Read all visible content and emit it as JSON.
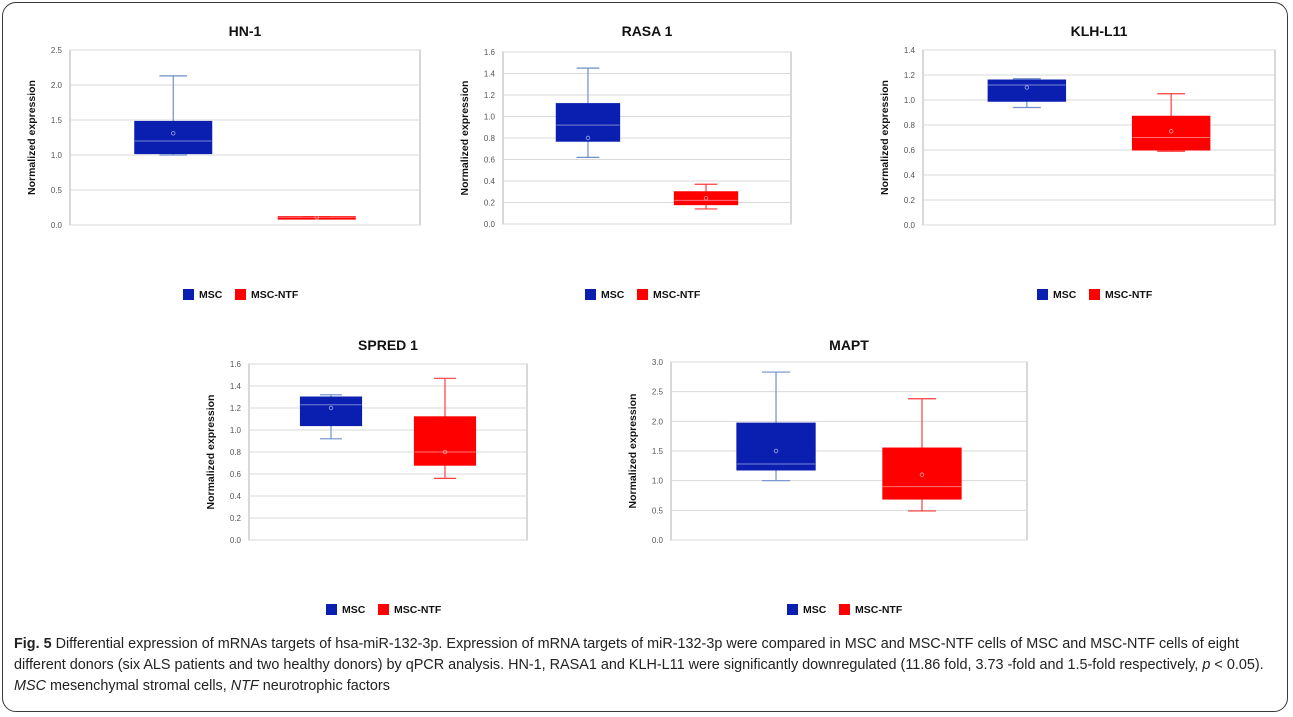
{
  "colors": {
    "msc": "#0a1fb0",
    "msc_ntf": "#ff0000",
    "whisker_msc": "#6f8fc9",
    "whisker_ntf": "#ff3b3b",
    "grid": "#d9d9d9",
    "axis": "#b0b0b0"
  },
  "legend": {
    "msc": "MSC",
    "msc_ntf": "MSC-NTF"
  },
  "chart_data": [
    {
      "type": "box",
      "title": "HN-1",
      "ylabel": "Normalized expression",
      "ylim": [
        0,
        2.5
      ],
      "yticks": [
        "0.0",
        "0.5",
        "1.0",
        "1.5",
        "2.0",
        "2.5"
      ],
      "legend_position": "bottom",
      "grid": true,
      "series": [
        {
          "name": "MSC",
          "min": 1.0,
          "q1": 1.02,
          "median": 1.2,
          "q3": 1.48,
          "max": 2.13,
          "mean": 1.31
        },
        {
          "name": "MSC-NTF",
          "min": 0.1,
          "q1": 0.1,
          "median": 0.11,
          "q3": 0.12,
          "max": 0.12,
          "mean": 0.11
        }
      ]
    },
    {
      "type": "box",
      "title": "RASA 1",
      "ylabel": "Normalized expression",
      "ylim": [
        0,
        1.6
      ],
      "yticks": [
        "0.0",
        "0.2",
        "0.4",
        "0.6",
        "0.8",
        "1.0",
        "1.2",
        "1.4",
        "1.6"
      ],
      "legend_position": "bottom",
      "grid": true,
      "series": [
        {
          "name": "MSC",
          "min": 0.62,
          "q1": 0.77,
          "median": 0.92,
          "q3": 1.12,
          "max": 1.45,
          "mean": 0.8
        },
        {
          "name": "MSC-NTF",
          "min": 0.14,
          "q1": 0.18,
          "median": 0.22,
          "q3": 0.3,
          "max": 0.37,
          "mean": 0.24
        }
      ]
    },
    {
      "type": "box",
      "title": "KLH-L11",
      "ylabel": "Normalized expression",
      "ylim": [
        0,
        1.4
      ],
      "yticks": [
        "0.0",
        "0.2",
        "0.4",
        "0.6",
        "0.8",
        "1.0",
        "1.2",
        "1.4"
      ],
      "legend_position": "bottom",
      "grid": true,
      "series": [
        {
          "name": "MSC",
          "min": 0.94,
          "q1": 0.99,
          "median": 1.12,
          "q3": 1.16,
          "max": 1.17,
          "mean": 1.1
        },
        {
          "name": "MSC-NTF",
          "min": 0.59,
          "q1": 0.6,
          "median": 0.7,
          "q3": 0.87,
          "max": 1.05,
          "mean": 0.75
        }
      ]
    },
    {
      "type": "box",
      "title": "SPRED 1",
      "ylabel": "Normalized expression",
      "ylim": [
        0,
        1.6
      ],
      "yticks": [
        "0.0",
        "0.2",
        "0.4",
        "0.6",
        "0.8",
        "1.0",
        "1.2",
        "1.4",
        "1.6"
      ],
      "legend_position": "bottom",
      "grid": true,
      "series": [
        {
          "name": "MSC",
          "min": 0.92,
          "q1": 1.04,
          "median": 1.23,
          "q3": 1.3,
          "max": 1.32,
          "mean": 1.2
        },
        {
          "name": "MSC-NTF",
          "min": 0.56,
          "q1": 0.68,
          "median": 0.8,
          "q3": 1.12,
          "max": 1.47,
          "mean": 0.8
        }
      ]
    },
    {
      "type": "box",
      "title": "MAPT",
      "ylabel": "Normalized expression",
      "ylim": [
        0,
        3.0
      ],
      "yticks": [
        "0.0",
        "0.5",
        "1.0",
        "1.5",
        "2.0",
        "2.5",
        "3.0"
      ],
      "legend_position": "bottom",
      "grid": true,
      "series": [
        {
          "name": "MSC",
          "min": 1.0,
          "q1": 1.18,
          "median": 1.28,
          "q3": 1.97,
          "max": 2.83,
          "mean": 1.5
        },
        {
          "name": "MSC-NTF",
          "min": 0.49,
          "q1": 0.69,
          "median": 0.9,
          "q3": 1.55,
          "max": 2.38,
          "mean": 1.1
        }
      ]
    }
  ],
  "caption": {
    "label": "Fig. 5",
    "part1": " Differential expression of mRNAs targets of hsa-miR-132-3p. Expression of mRNA targets of miR-132-3p were compared in MSC and MSC-NTF cells of MSC and MSC-NTF cells of eight different donors (six ALS patients and two healthy donors) by qPCR analysis. HN-1, RASA1 and KLH-L11 were significantly downregulated (11.86 fold, 3.73 -fold and 1.5-fold respectively, ",
    "p": "p",
    "part2": " < 0.05). ",
    "msc_abbr": "MSC",
    "part3": " mesenchymal stromal cells, ",
    "ntf_abbr": "NTF",
    "part4": " neurotrophic factors"
  }
}
